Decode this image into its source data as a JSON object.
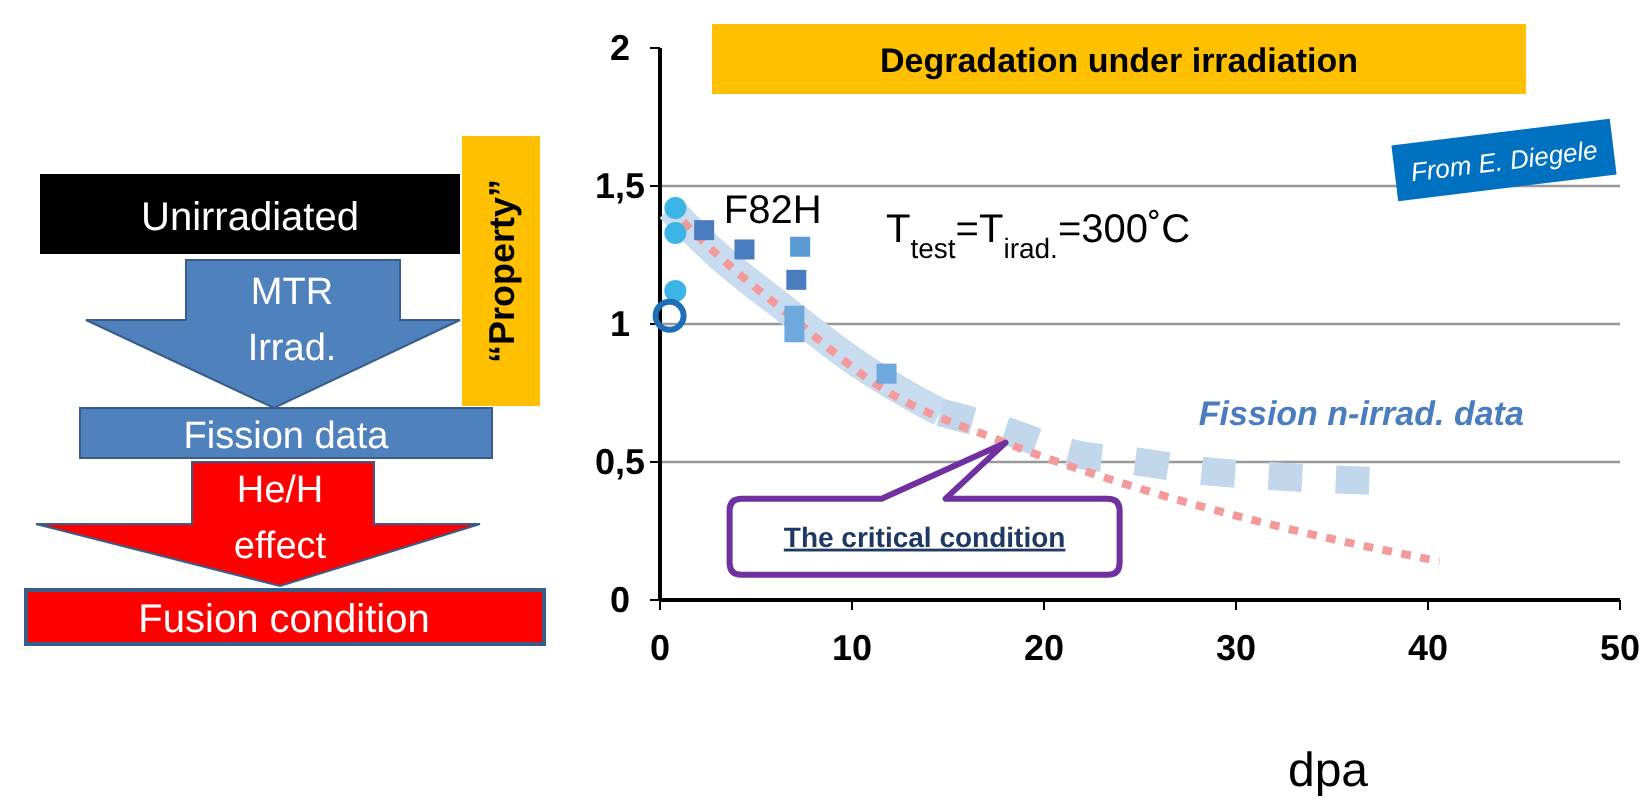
{
  "chart_data": {
    "type": "scatter",
    "title": "Degradation under irradiation",
    "ylabel": "“Property”",
    "xlabel": "dpa",
    "xlim": [
      0,
      50
    ],
    "xticks": [
      0,
      10,
      20,
      30,
      40,
      50
    ],
    "ylim": [
      0,
      2
    ],
    "yticks": [
      0,
      {
        "value": 0.5,
        "label": "0,5"
      },
      1,
      {
        "value": 1.5,
        "label": "1,5"
      },
      2
    ],
    "grid": "y",
    "legend": false,
    "series": [
      {
        "marker": "circle",
        "color": "#3cb4e6",
        "x": [
          0.8,
          0.8,
          0.8
        ],
        "values": [
          1.42,
          1.33,
          1.12
        ]
      },
      {
        "marker": "circle",
        "color": "#1f6fb8",
        "x": [
          0.5
        ],
        "values": [
          1.03
        ]
      },
      {
        "marker": "square",
        "color": "#4a7cc0",
        "x": [
          2.3,
          4.4,
          7.1
        ],
        "values": [
          1.34,
          1.27,
          1.16
        ]
      },
      {
        "marker": "square",
        "color": "#5b9bd5",
        "x": [
          7.3
        ],
        "values": [
          1.28
        ]
      },
      {
        "marker": "square",
        "color": "#6fa8dc",
        "x": [
          7,
          7,
          11.8
        ],
        "values": [
          1.03,
          0.97,
          0.82
        ]
      },
      {
        "type": "line",
        "line_style": "solid",
        "color": "#c9dcef",
        "x": [
          0.5,
          3,
          6.6,
          10,
          13,
          14.6
        ],
        "values": [
          1.42,
          1.25,
          1.05,
          0.87,
          0.74,
          0.68
        ]
      },
      {
        "type": "line",
        "line_style": "dashed",
        "name": "Fission n-irrad. data",
        "color": "#c2d7ec",
        "x": [
          14.6,
          17.7,
          21.6,
          25,
          28,
          31.6,
          37.7
        ],
        "values": [
          0.68,
          0.62,
          0.53,
          0.5,
          0.47,
          0.45,
          0.43
        ]
      },
      {
        "type": "line",
        "line_style": "dashed",
        "color": "#f59a9a",
        "x": [
          0.5,
          3,
          6.6,
          11.5,
          18,
          24.7,
          32,
          40.6
        ],
        "values": [
          1.42,
          1.25,
          1.04,
          0.77,
          0.57,
          0.41,
          0.27,
          0.14
        ]
      }
    ],
    "annotations": [
      {
        "text": "F82H",
        "x": 2.8,
        "y": 1.38
      },
      "T$_{test}$=T$_{irad.}$=300˚C",
      "From E. Diegele",
      {
        "text": "The critical condition",
        "x": 18,
        "y": 0.57
      },
      "Unirradiated",
      "MTR Irrad.",
      "Fission data",
      "He/H effect",
      "Fusion condition"
    ]
  }
}
